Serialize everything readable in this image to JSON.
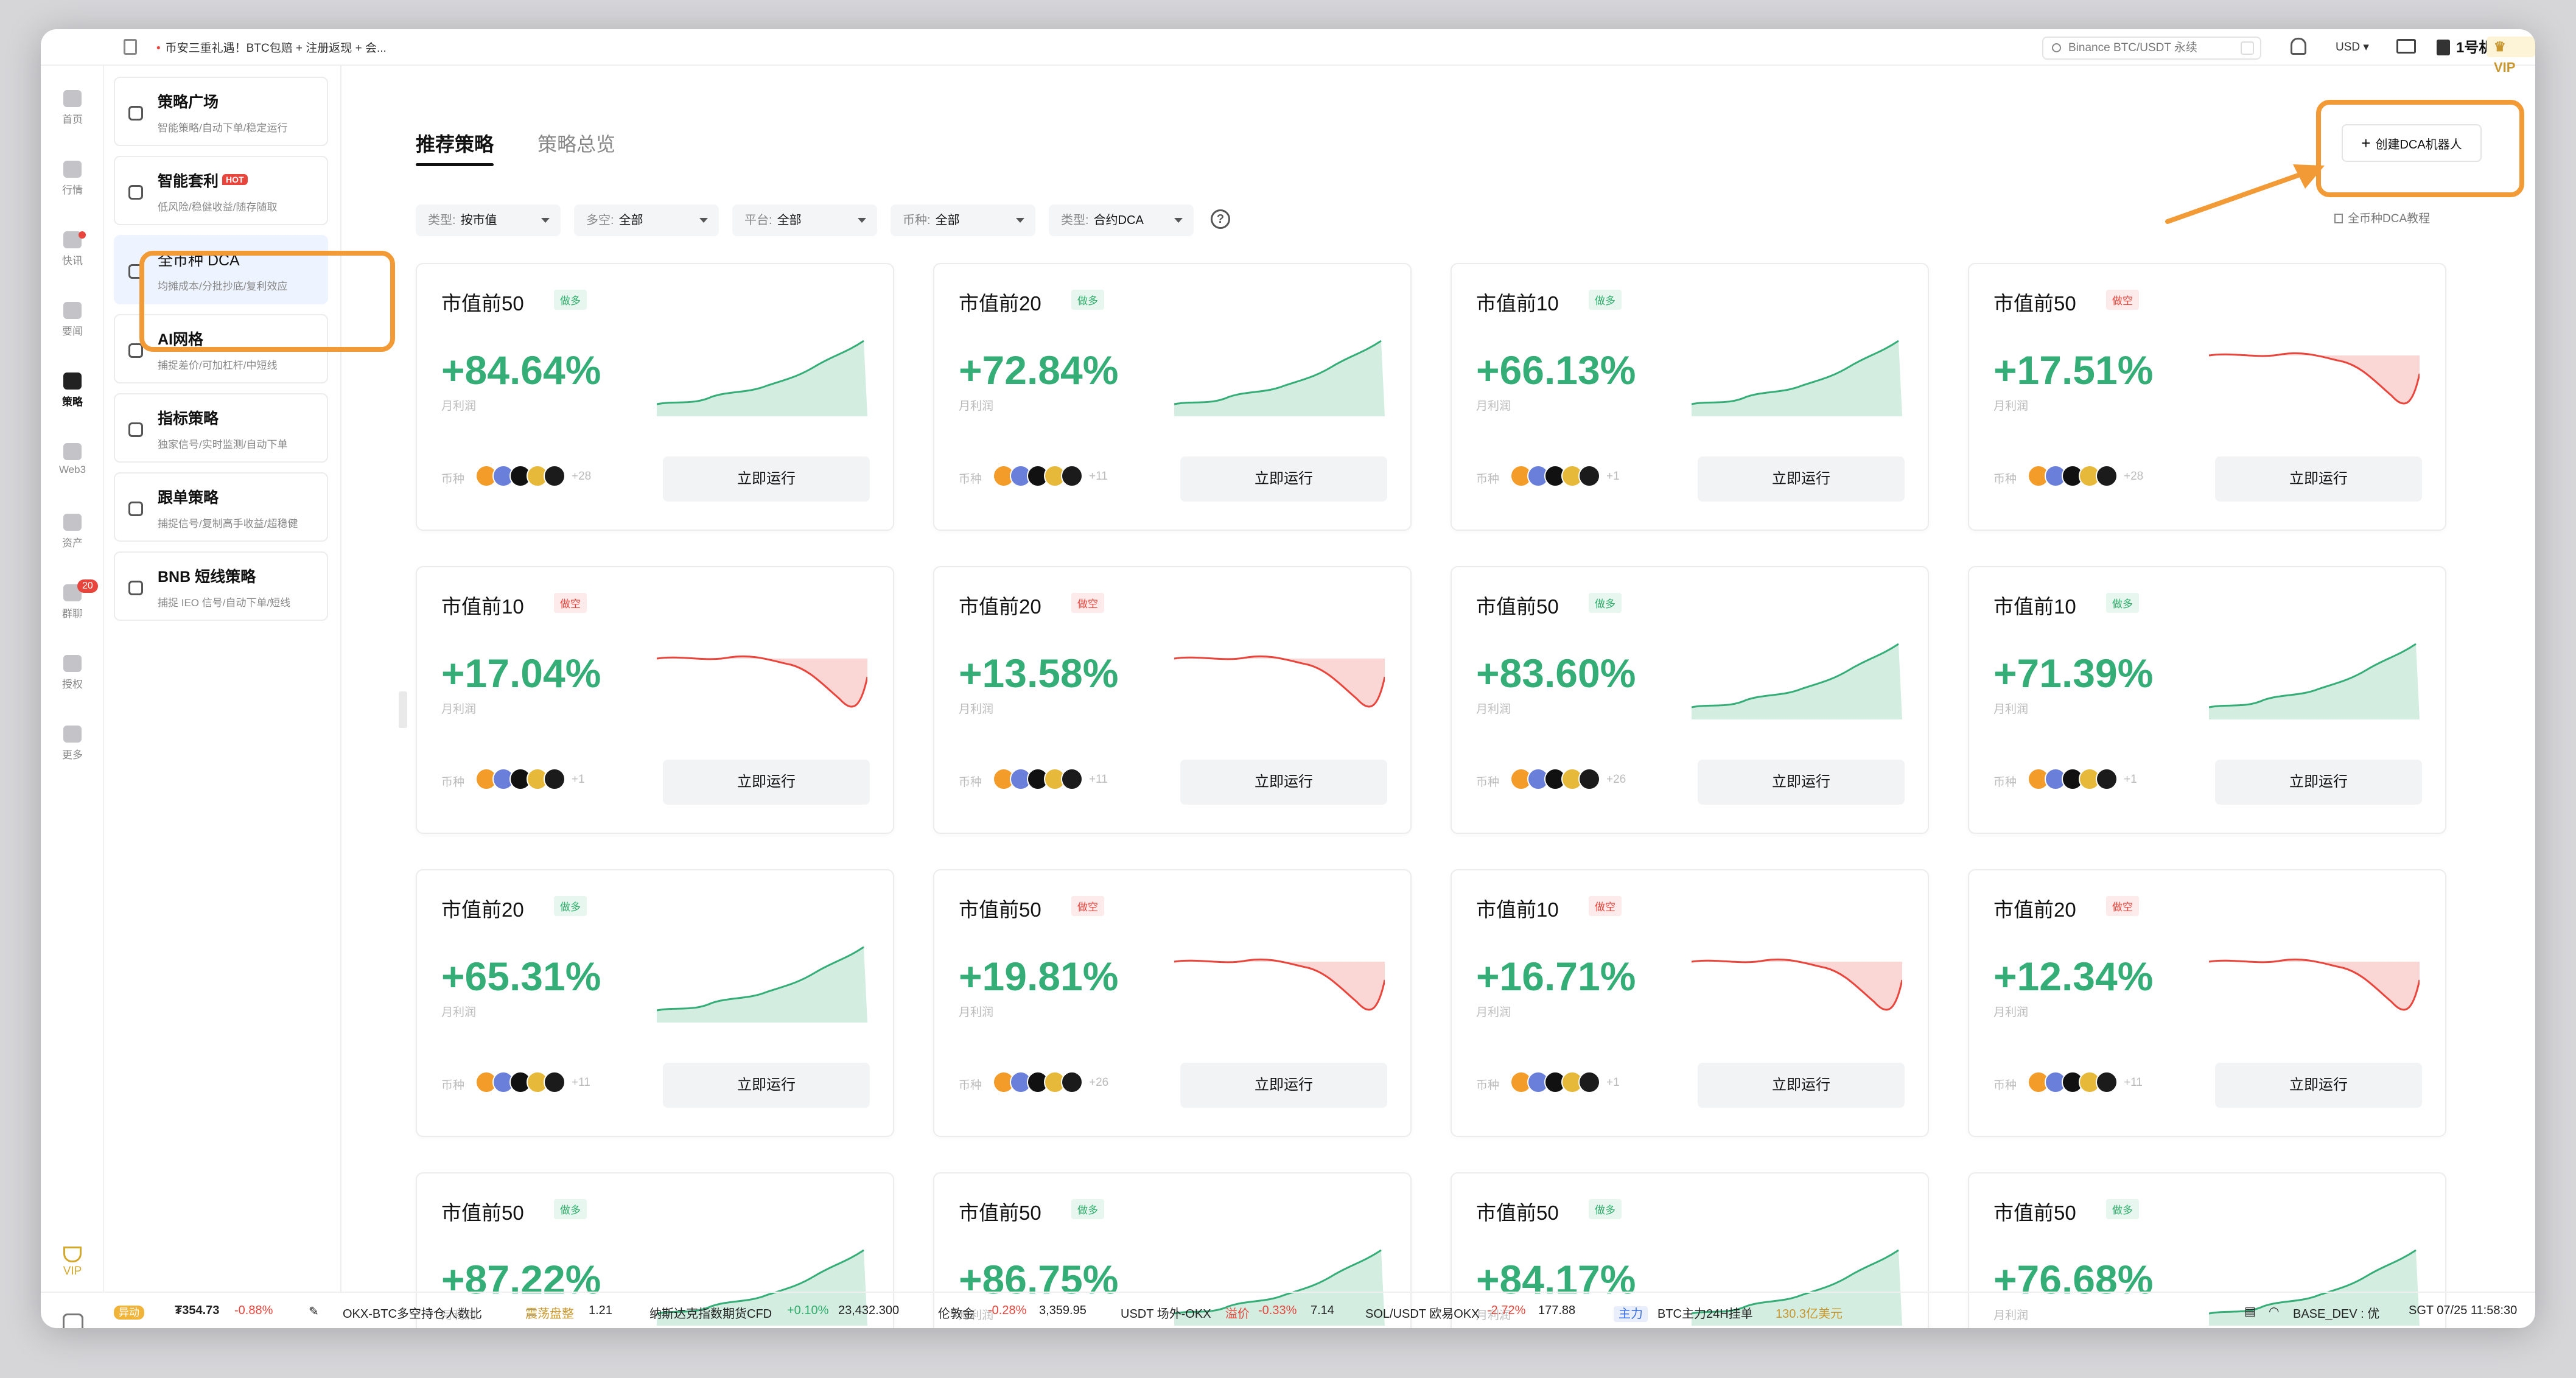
{
  "topbar": {
    "announcement": "币安三重礼遇！BTC包赔 + 注册返现 + 会...",
    "search_placeholder": "Binance BTC/USDT 永续",
    "currency": "USD",
    "account": "1号机",
    "vip": "VIP"
  },
  "rail": {
    "items": [
      {
        "label": "首页",
        "icon": "home-icon"
      },
      {
        "label": "行情",
        "icon": "market-chart-icon"
      },
      {
        "label": "快讯",
        "icon": "news-icon"
      },
      {
        "label": "要闻",
        "icon": "headlines-icon"
      },
      {
        "label": "策略",
        "icon": "robot-icon"
      },
      {
        "label": "Web3",
        "icon": "web3-icon"
      },
      {
        "label": "资产",
        "icon": "wallet-icon"
      },
      {
        "label": "群聊",
        "icon": "chat-icon"
      },
      {
        "label": "授权",
        "icon": "auth-icon"
      },
      {
        "label": "更多",
        "icon": "grid-icon"
      }
    ],
    "chat_badge": "20",
    "vip": "VIP"
  },
  "subnav": {
    "items": [
      {
        "title": "策略广场",
        "desc": "智能策略/自动下单/稳定运行"
      },
      {
        "title": "智能套利",
        "desc": "低风险/稳健收益/随存随取",
        "hot": "HOT"
      },
      {
        "title": "全币种 DCA",
        "desc": "均摊成本/分批抄底/复利效应"
      },
      {
        "title": "AI网格",
        "desc": "捕捉差价/可加杠杆/中短线"
      },
      {
        "title": "指标策略",
        "desc": "独家信号/实时监测/自动下单"
      },
      {
        "title": "跟单策略",
        "desc": "捕捉信号/复制高手收益/超稳健"
      },
      {
        "title": "BNB 短线策略",
        "desc": "捕捉 IEO 信号/自动下单/短线"
      }
    ]
  },
  "main": {
    "tabs": [
      "推荐策略",
      "策略总览"
    ],
    "create_button": "创建DCA机器人",
    "tutorial_link": "全币种DCA教程",
    "filters": [
      {
        "key": "类型:",
        "value": "按市值"
      },
      {
        "key": "多空:",
        "value": "全部"
      },
      {
        "key": "平台:",
        "value": "全部"
      },
      {
        "key": "币种:",
        "value": "全部"
      },
      {
        "key": "类型:",
        "value": "合约DCA"
      }
    ],
    "help": "?",
    "profit_label": "月利润",
    "coins_label": "币种",
    "run_label": "立即运行"
  },
  "cards": [
    {
      "title": "市值前50",
      "tag": "做多",
      "dir": "long",
      "pct": "+84.64%",
      "more": "+28"
    },
    {
      "title": "市值前20",
      "tag": "做多",
      "dir": "long",
      "pct": "+72.84%",
      "more": "+11"
    },
    {
      "title": "市值前10",
      "tag": "做多",
      "dir": "long",
      "pct": "+66.13%",
      "more": "+1"
    },
    {
      "title": "市值前50",
      "tag": "做空",
      "dir": "short",
      "pct": "+17.51%",
      "more": "+28"
    },
    {
      "title": "市值前10",
      "tag": "做空",
      "dir": "short",
      "pct": "+17.04%",
      "more": "+1"
    },
    {
      "title": "市值前20",
      "tag": "做空",
      "dir": "short",
      "pct": "+13.58%",
      "more": "+11"
    },
    {
      "title": "市值前50",
      "tag": "做多",
      "dir": "long",
      "pct": "+83.60%",
      "more": "+26"
    },
    {
      "title": "市值前10",
      "tag": "做多",
      "dir": "long",
      "pct": "+71.39%",
      "more": "+1"
    },
    {
      "title": "市值前20",
      "tag": "做多",
      "dir": "long",
      "pct": "+65.31%",
      "more": "+11"
    },
    {
      "title": "市值前50",
      "tag": "做空",
      "dir": "short",
      "pct": "+19.81%",
      "more": "+26"
    },
    {
      "title": "市值前10",
      "tag": "做空",
      "dir": "short",
      "pct": "+16.71%",
      "more": "+1"
    },
    {
      "title": "市值前20",
      "tag": "做空",
      "dir": "short",
      "pct": "+12.34%",
      "more": "+11"
    },
    {
      "title": "市值前50",
      "tag": "做多",
      "dir": "long",
      "pct": "+87.22%",
      "more": ""
    },
    {
      "title": "市值前50",
      "tag": "做多",
      "dir": "long",
      "pct": "+86.75%",
      "more": ""
    },
    {
      "title": "市值前50",
      "tag": "做多",
      "dir": "long",
      "pct": "+84.17%",
      "more": ""
    },
    {
      "title": "市值前50",
      "tag": "做多",
      "dir": "long",
      "pct": "+76.68%",
      "more": ""
    }
  ],
  "statusbar": {
    "yd": "异动",
    "price": "₮354.73",
    "price_change": "-0.88%",
    "t1_label": "OKX-BTC多空持仓人数比",
    "t1_status": "震荡盘整",
    "t1_value": "1.21",
    "t2_label": "纳斯达克指数期货CFD",
    "t2_change": "+0.10%",
    "t2_value": "23,432.300",
    "t3_label": "伦敦金",
    "t3_change": "-0.28%",
    "t3_value": "3,359.95",
    "t4_label": "USDT 场外-OKX",
    "t4_status": "溢价",
    "t4_change": "-0.33%",
    "t4_value": "7.14",
    "t5_label": "SOL/USDT 欧易OKX",
    "t5_change": "-2.72%",
    "t5_value": "177.88",
    "t6_tag": "主力",
    "t6_label": "BTC主力24H挂单",
    "t6_value": "130.3亿美元",
    "network": "BASE_DEV : 优",
    "clock": "SGT 07/25 11:58:30"
  },
  "colors": {
    "accent_green": "#35ad77",
    "short_red": "#e8453c",
    "highlight_orange": "#f19a36"
  }
}
